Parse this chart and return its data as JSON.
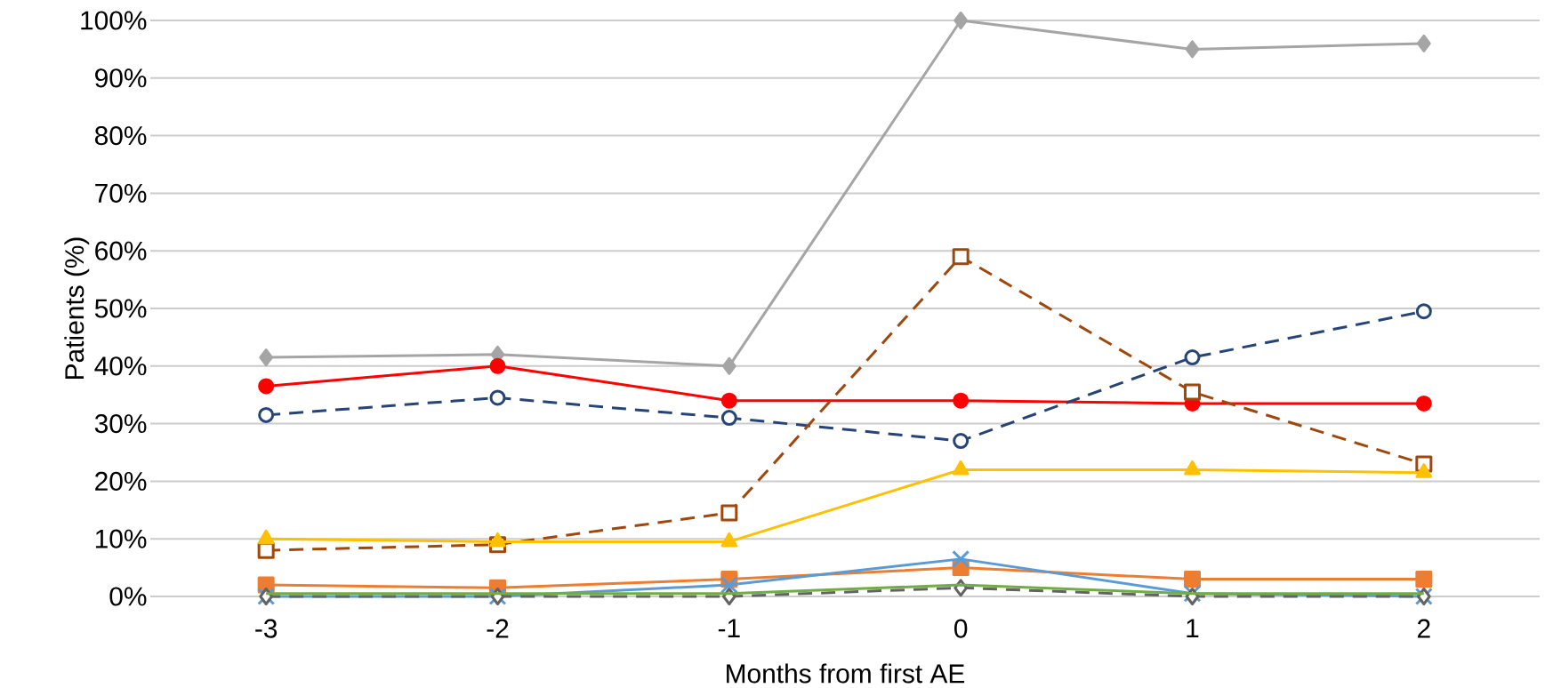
{
  "chart_data": {
    "type": "line",
    "xlabel": "Months from first AE",
    "ylabel": "Patients (%)",
    "categories": [
      "-3",
      "-2",
      "-1",
      "0",
      "1",
      "2"
    ],
    "ylim": [
      0,
      100
    ],
    "yticks": [
      {
        "value": 0,
        "label": "0%"
      },
      {
        "value": 10,
        "label": "10%"
      },
      {
        "value": 20,
        "label": "20%"
      },
      {
        "value": 30,
        "label": "30%"
      },
      {
        "value": 40,
        "label": "40%"
      },
      {
        "value": 50,
        "label": "50%"
      },
      {
        "value": 60,
        "label": "60%"
      },
      {
        "value": 70,
        "label": "70%"
      },
      {
        "value": 80,
        "label": "80%"
      },
      {
        "value": 90,
        "label": "90%"
      },
      {
        "value": 100,
        "label": "100%"
      }
    ],
    "grid": "y",
    "series": [
      {
        "color": "#a5a5a5",
        "marker": "diamond",
        "line_style": "solid",
        "values": [
          41.5,
          42,
          40,
          100,
          95,
          96
        ]
      },
      {
        "color": "#ff0000",
        "marker": "circle",
        "line_style": "solid",
        "values": [
          36.5,
          40,
          34,
          34,
          33.5,
          33.5
        ]
      },
      {
        "color": "#264478",
        "marker": "circle",
        "line_style": "dashed",
        "values": [
          31.5,
          34.5,
          31,
          27,
          41.5,
          49.5
        ]
      },
      {
        "color": "#9e480e",
        "marker": "square",
        "line_style": "dashed",
        "values": [
          8,
          9,
          14.5,
          59,
          35.5,
          23
        ]
      },
      {
        "color": "#ffc000",
        "marker": "triangle",
        "line_style": "solid",
        "values": [
          10,
          9.5,
          9.5,
          22,
          22,
          21.5
        ]
      },
      {
        "color": "#ed7d31",
        "marker": "square",
        "line_style": "solid",
        "values": [
          2,
          1.5,
          3,
          5,
          3,
          3
        ]
      },
      {
        "color": "#5b9bd5",
        "marker": "cross",
        "line_style": "solid",
        "values": [
          0,
          0,
          2,
          6.5,
          0.5,
          0
        ]
      },
      {
        "color": "#636363",
        "marker": "diamond",
        "line_style": "dashed",
        "values": [
          0,
          0,
          0,
          1.5,
          0,
          0
        ]
      },
      {
        "color": "#70ad47",
        "marker": "none",
        "line_style": "solid",
        "values": [
          0.5,
          0.5,
          0.5,
          2,
          0.5,
          0.5
        ]
      }
    ]
  }
}
